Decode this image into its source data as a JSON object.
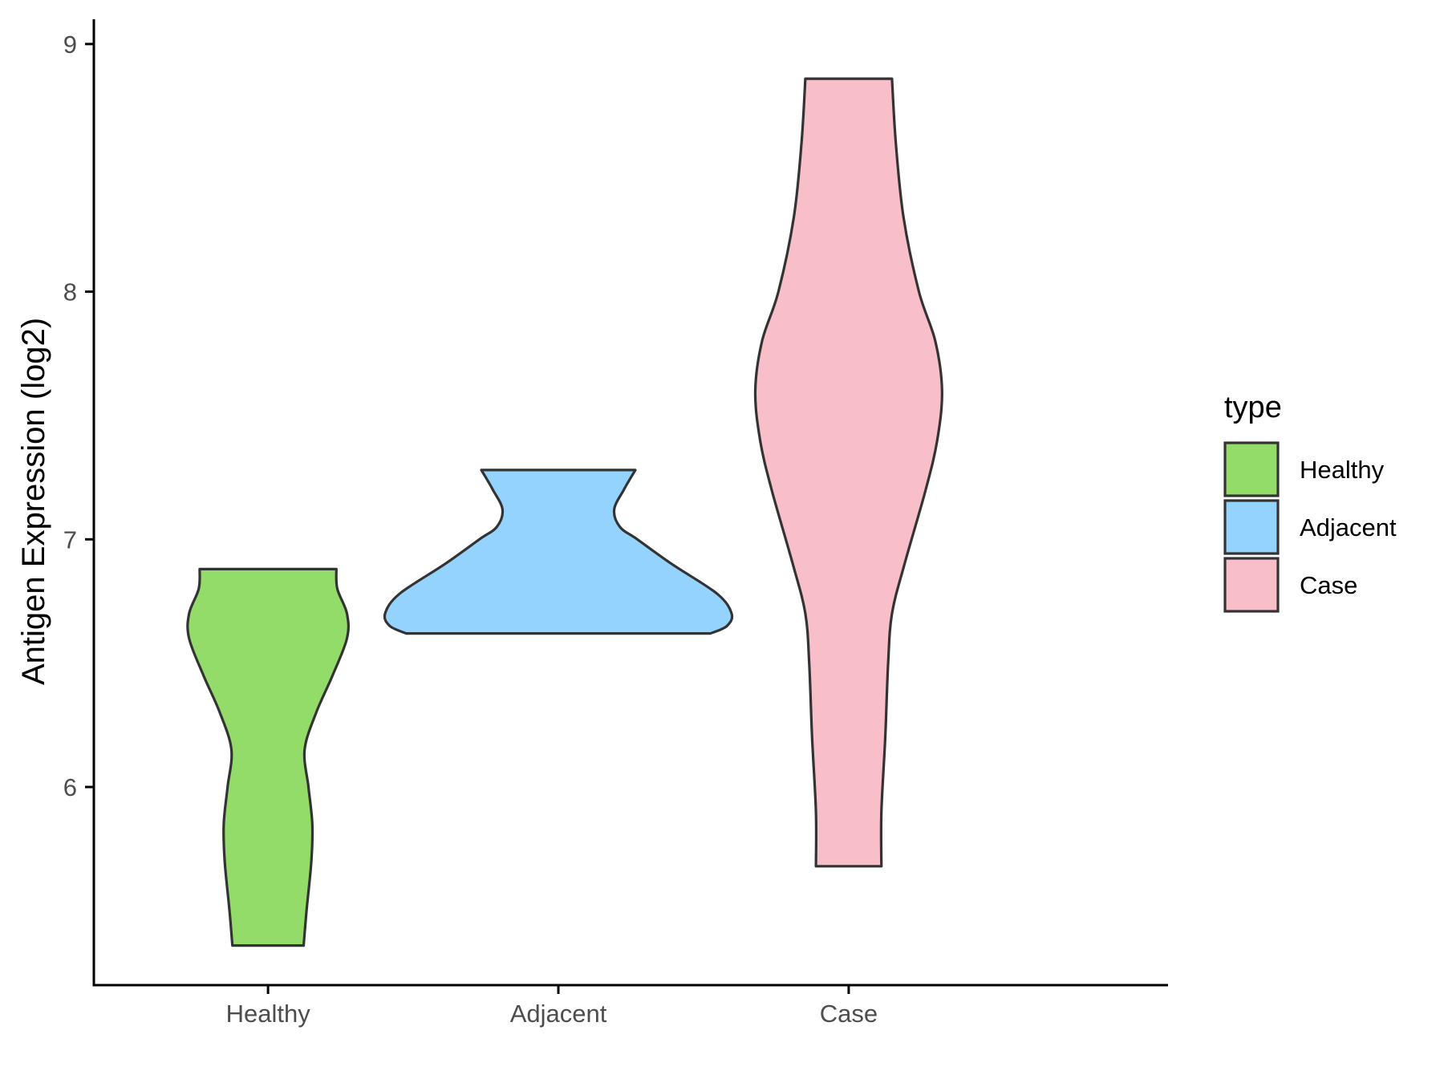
{
  "chart_data": {
    "type": "violin",
    "title": "",
    "xlabel": "",
    "ylabel": "Antigen Expression (log2)",
    "ylim": [
      5.2,
      9.1
    ],
    "yticks": [
      6,
      7,
      8,
      9
    ],
    "categories": [
      "Healthy",
      "Adjacent",
      "Case"
    ],
    "series": [
      {
        "name": "Healthy",
        "color": "#93dc69",
        "min": 5.36,
        "max": 6.88,
        "profile": [
          [
            5.36,
            0.37
          ],
          [
            5.5,
            0.4
          ],
          [
            5.7,
            0.45
          ],
          [
            5.85,
            0.46
          ],
          [
            6.0,
            0.42
          ],
          [
            6.15,
            0.38
          ],
          [
            6.3,
            0.5
          ],
          [
            6.45,
            0.67
          ],
          [
            6.6,
            0.82
          ],
          [
            6.7,
            0.82
          ],
          [
            6.8,
            0.72
          ],
          [
            6.88,
            0.71
          ]
        ]
      },
      {
        "name": "Adjacent",
        "color": "#94d3fe",
        "min": 6.62,
        "max": 7.28,
        "profile": [
          [
            6.62,
            1.58
          ],
          [
            6.65,
            1.75
          ],
          [
            6.7,
            1.8
          ],
          [
            6.78,
            1.65
          ],
          [
            6.9,
            1.18
          ],
          [
            7.0,
            0.82
          ],
          [
            7.05,
            0.64
          ],
          [
            7.12,
            0.58
          ],
          [
            7.2,
            0.68
          ],
          [
            7.28,
            0.8
          ]
        ]
      },
      {
        "name": "Case",
        "color": "#f8bfcb",
        "min": 5.68,
        "max": 8.86,
        "profile": [
          [
            5.68,
            0.34
          ],
          [
            5.9,
            0.34
          ],
          [
            6.2,
            0.38
          ],
          [
            6.5,
            0.41
          ],
          [
            6.7,
            0.45
          ],
          [
            6.9,
            0.58
          ],
          [
            7.2,
            0.8
          ],
          [
            7.4,
            0.92
          ],
          [
            7.6,
            0.97
          ],
          [
            7.8,
            0.9
          ],
          [
            8.0,
            0.73
          ],
          [
            8.3,
            0.57
          ],
          [
            8.6,
            0.49
          ],
          [
            8.86,
            0.45
          ]
        ]
      }
    ],
    "legend": {
      "title": "type",
      "position": "right",
      "entries": [
        "Healthy",
        "Adjacent",
        "Case"
      ]
    },
    "grid": false,
    "outline_color": "#333333",
    "axis_color": "#000000"
  }
}
